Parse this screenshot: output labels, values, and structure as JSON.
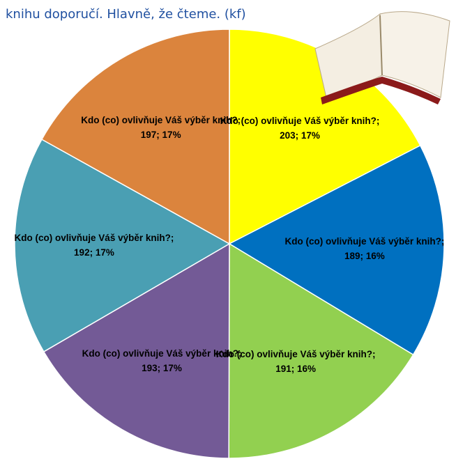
{
  "header": {
    "text": "knihu doporučí. Hlavně, že čteme. (kf)"
  },
  "chart_data": {
    "type": "pie",
    "categories": [
      null,
      null,
      null,
      null,
      null,
      null
    ],
    "values": [
      203,
      189,
      191,
      193,
      192,
      197
    ],
    "value_labels": [
      "Kdo (co) ovlivňuje Váš výběr knih?; 203; 17%",
      "Kdo (co) ovlivňuje Váš výběr knih?; 189; 16%",
      "Kdo (co) ovlivňuje Váš výběr knih?; 191; 16%",
      "Kdo (co) ovlivňuje Váš výběr knih?; 193; 17%",
      "Kdo (co) ovlivňuje Váš výběr knih?; 192; 17%",
      "Kdo (co) ovlivňuje Váš výběr knih?; 197; 17%"
    ],
    "colors": [
      "#ffff00",
      "#0070c0",
      "#92d050",
      "#735a96",
      "#4a9fb3",
      "#db843d"
    ]
  }
}
